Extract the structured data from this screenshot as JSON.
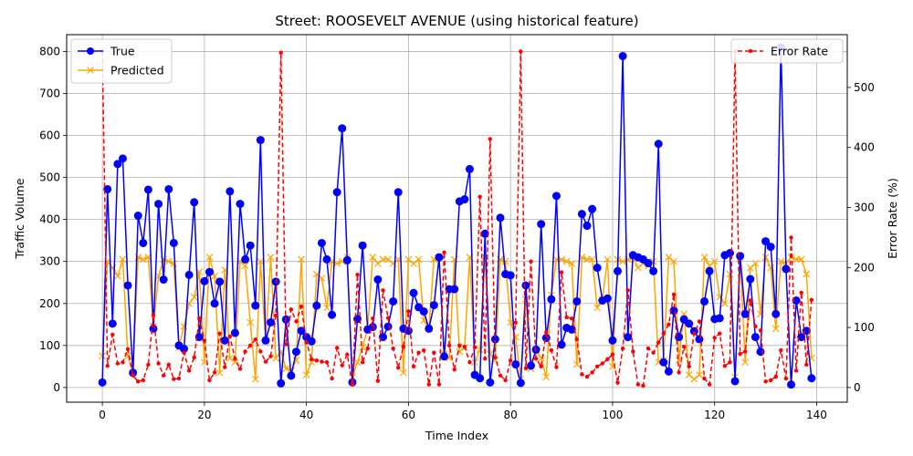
{
  "chart_data": {
    "type": "line",
    "title": "Street: ROOSEVELT AVENUE (using historical feature)",
    "xlabel": "Time Index",
    "ylabel": "Traffic Volume",
    "ylabel_right": "Error Rate (%)",
    "xlim": [
      -7,
      146
    ],
    "ylim": [
      -35,
      840
    ],
    "ylim_right": [
      -24.5,
      588
    ],
    "x_ticks": [
      0,
      20,
      40,
      60,
      80,
      100,
      120,
      140
    ],
    "y_ticks": [
      0,
      100,
      200,
      300,
      400,
      500,
      600,
      700,
      800
    ],
    "y_ticks_right": [
      0,
      100,
      200,
      300,
      400,
      500
    ],
    "grid": true,
    "legend_left_position": "upper-left",
    "legend_right_position": "upper-right",
    "series": [
      {
        "name": "True",
        "axis": "left",
        "color": "#0000ff",
        "marker": "circle",
        "values": [
          12,
          472,
          152,
          532,
          545,
          243,
          35,
          409,
          344,
          471,
          140,
          437,
          257,
          472,
          344,
          100,
          92,
          268,
          441,
          120,
          253,
          275,
          200,
          252,
          112,
          467,
          130,
          437,
          305,
          338,
          195,
          589,
          112,
          155,
          252,
          10,
          162,
          28,
          85,
          135,
          120,
          110,
          195,
          344,
          305,
          173,
          465,
          617,
          303,
          12,
          163,
          338,
          138,
          144,
          257,
          120,
          145,
          205,
          465,
          140,
          135,
          225,
          191,
          181,
          140,
          196,
          310,
          74,
          234,
          234,
          443,
          448,
          520,
          30,
          22,
          366,
          12,
          115,
          404,
          270,
          267,
          55,
          11,
          243,
          52,
          90,
          389,
          118,
          210,
          456,
          102,
          142,
          138,
          205,
          413,
          385,
          425,
          285,
          207,
          212,
          112,
          277,
          789,
          120,
          315,
          310,
          305,
          296,
          277,
          580,
          60,
          38,
          183,
          120,
          162,
          152,
          134,
          115,
          205,
          277,
          163,
          165,
          315,
          320,
          15,
          313,
          175,
          258,
          120,
          85,
          348,
          335,
          175,
          810,
          282,
          7,
          207,
          120,
          135,
          22
        ]
      },
      {
        "name": "Predicted",
        "axis": "left",
        "color": "#ffa500",
        "marker": "x",
        "values": [
          75,
          300,
          285,
          265,
          305,
          75,
          35,
          310,
          305,
          310,
          145,
          265,
          305,
          300,
          295,
          95,
          145,
          200,
          215,
          275,
          60,
          310,
          265,
          35,
          280,
          70,
          60,
          300,
          290,
          155,
          20,
          300,
          110,
          310,
          70,
          85,
          45,
          40,
          65,
          305,
          30,
          60,
          270,
          260,
          190,
          300,
          295,
          300,
          310,
          25,
          60,
          95,
          140,
          310,
          295,
          305,
          305,
          295,
          305,
          35,
          305,
          295,
          305,
          160,
          140,
          305,
          310,
          80,
          70,
          305,
          85,
          95,
          310,
          60,
          90,
          310,
          80,
          65,
          305,
          300,
          155,
          120,
          20,
          210,
          45,
          90,
          70,
          25,
          220,
          305,
          305,
          300,
          295,
          55,
          310,
          305,
          305,
          190,
          210,
          305,
          50,
          305,
          300,
          305,
          310,
          285,
          295,
          290,
          300,
          60,
          65,
          310,
          300,
          65,
          175,
          30,
          20,
          30,
          310,
          290,
          300,
          215,
          200,
          270,
          25,
          310,
          60,
          285,
          295,
          175,
          310,
          285,
          140,
          300,
          295,
          310,
          305,
          305,
          270,
          70
        ]
      },
      {
        "name": "Error Rate",
        "axis": "right",
        "color": "#ff0000",
        "marker": "dot",
        "dashed": true,
        "values": [
          560,
          36,
          88,
          40,
          42,
          64,
          20,
          10,
          12,
          38,
          121,
          40,
          20,
          38,
          14,
          15,
          58,
          28,
          50,
          115,
          78,
          12,
          25,
          90,
          34,
          85,
          48,
          31,
          60,
          70,
          80,
          60,
          43,
          52,
          120,
          558,
          72,
          130,
          110,
          135,
          75,
          47,
          45,
          43,
          42,
          15,
          66,
          37,
          55,
          5,
          188,
          42,
          65,
          115,
          11,
          162,
          116,
          65,
          33,
          68,
          127,
          35,
          58,
          62,
          5,
          58,
          5,
          225,
          70,
          30,
          70,
          68,
          42,
          67,
          318,
          48,
          414,
          50,
          20,
          12,
          45,
          108,
          560,
          32,
          210,
          48,
          35,
          92,
          62,
          34,
          192,
          117,
          115,
          80,
          22,
          18,
          25,
          35,
          40,
          47,
          55,
          8,
          65,
          162,
          60,
          5,
          3,
          65,
          58,
          75,
          90,
          105,
          155,
          25,
          68,
          35,
          90,
          110,
          15,
          5,
          83,
          90,
          36,
          42,
          560,
          56,
          60,
          145,
          102,
          95,
          10,
          12,
          18,
          62,
          15,
          250,
          28,
          158,
          38,
          146
        ]
      }
    ]
  }
}
